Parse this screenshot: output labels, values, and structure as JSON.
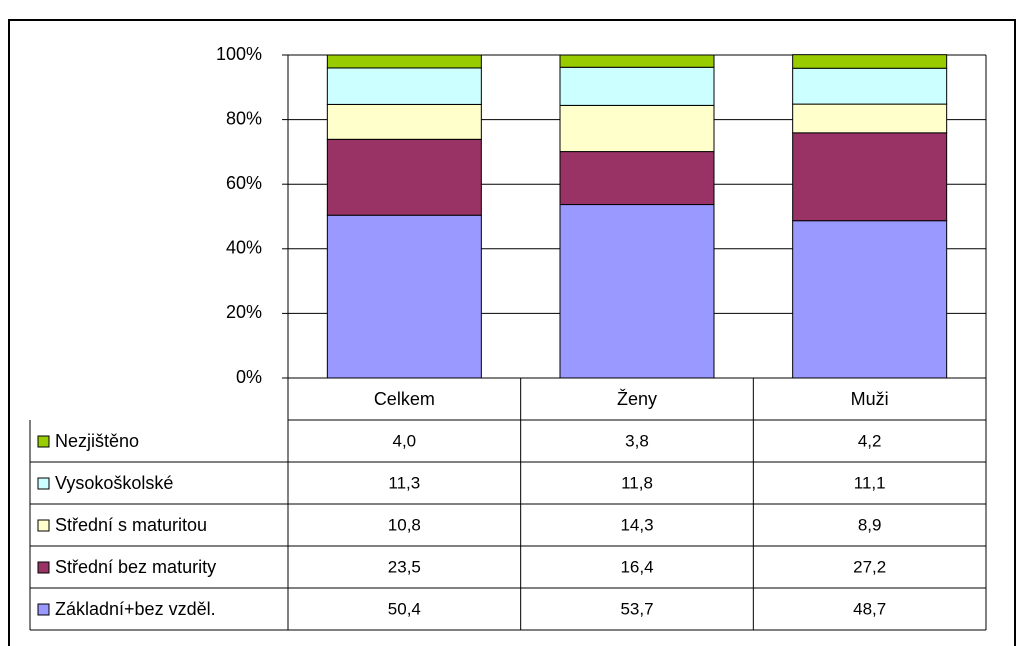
{
  "chart_data": {
    "type": "stacked_bar",
    "categories": [
      "Celkem",
      "Ženy",
      "Muži"
    ],
    "series": [
      {
        "name": "Základní+bez vzděl.",
        "color": "#9999ff",
        "values": [
          50.4,
          53.7,
          48.7
        ],
        "value_labels": [
          "50,4",
          "53,7",
          "48,7"
        ]
      },
      {
        "name": "Střední bez maturity",
        "color": "#993366",
        "values": [
          23.5,
          16.4,
          27.2
        ],
        "value_labels": [
          "23,5",
          "16,4",
          "27,2"
        ]
      },
      {
        "name": "Střední s maturitou",
        "color": "#ffffcc",
        "values": [
          10.8,
          14.3,
          8.9
        ],
        "value_labels": [
          "10,8",
          "14,3",
          "8,9"
        ]
      },
      {
        "name": "Vysokoškolské",
        "color": "#ccffff",
        "values": [
          11.3,
          11.8,
          11.1
        ],
        "value_labels": [
          "11,3",
          "11,8",
          "11,1"
        ]
      },
      {
        "name": "Nezjištěno",
        "color": "#99cc00",
        "values": [
          4.0,
          3.8,
          4.2
        ],
        "value_labels": [
          "4,0",
          "3,8",
          "4,2"
        ]
      }
    ],
    "ylim": [
      0,
      100
    ],
    "yticks": [
      {
        "value": 0,
        "label": "0%"
      },
      {
        "value": 20,
        "label": "20%"
      },
      {
        "value": 40,
        "label": "40%"
      },
      {
        "value": 60,
        "label": "60%"
      },
      {
        "value": 80,
        "label": "80%"
      },
      {
        "value": 100,
        "label": "100%"
      }
    ],
    "grid": true
  }
}
